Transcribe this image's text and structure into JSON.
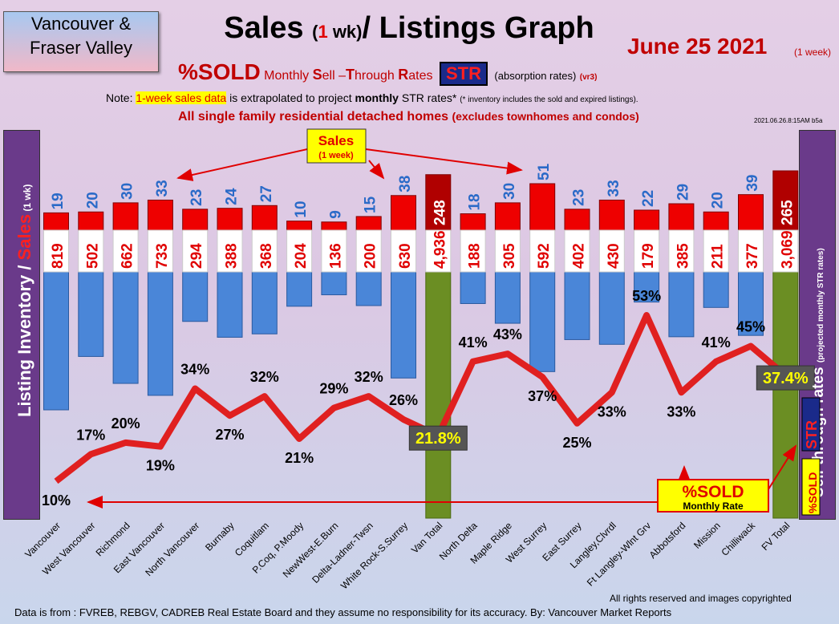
{
  "region": {
    "line1": "Vancouver &",
    "line2": "Fraser Valley"
  },
  "title": {
    "part1": "Sales ",
    "paren_open": "(",
    "one": "1",
    "paren_close": " wk)",
    "part2": "/ Listings Graph"
  },
  "date": {
    "main": "June 25  2021",
    "sub": "(1 week)"
  },
  "sold_line": {
    "pct_sold": "%SOLD",
    "monthly": "Monthly ",
    "s": "S",
    "ell": "ell –",
    "t": "T",
    "hrough": "hrough ",
    "r": "R",
    "ates": "ates",
    "str": "STR",
    "absorb": "(absorption rates)",
    "vr": "(vr3)"
  },
  "note": {
    "prefix": "Note: ",
    "highlight": "1-week sales data",
    "middle": " is extrapolated to project ",
    "bold": "monthly",
    "after": " STR rates* ",
    "small": "(* inventory includes the sold and expired listings)."
  },
  "subtitle": {
    "main": "All single family residential detached homes ",
    "small": "(excludes townhomes and condos)"
  },
  "stamp": "2021.06.26.8:15AM b5a",
  "footer": {
    "source": "Data is from : FVREB, REBGV, CADREB Real Estate Board and they assume no responsibility for its accuracy. By: Vancouver Market Reports",
    "copyright": "All rights reserved and  images copyrighted"
  },
  "colors": {
    "sales_bar": "#ee0000",
    "listings_bar": "#4a86d8",
    "total_bar": "#6b8e23",
    "str_line": "#e02020",
    "panel": "#6a3a8a"
  },
  "chart_data": {
    "type": "bar",
    "y_left_label": {
      "listing": "Listing Inventory / ",
      "sales": "Sales",
      "wk": " (1 wk)"
    },
    "y_right_label": {
      "main": "Sell-through rates ",
      "small": "(projected monthly STR rates)"
    },
    "right_str": "STR",
    "right_sold": "%SOLD",
    "sales_callout": {
      "title": "Sales",
      "sub": "(1 week)"
    },
    "sold_callout": {
      "title": "%SOLD",
      "sub": "Monthly Rate"
    },
    "categories": [
      "Vancouver",
      "West Vancouver",
      "Richmond",
      "East Vancouver",
      "North Vancouver",
      "Burnaby",
      "Coquitlam",
      "P.Coq, P.Moody",
      "NewWest-E.Burn",
      "Delta-Ladner-Twsn",
      "White Rock-S.Surrey",
      "Van Total",
      "North Delta",
      "Maple Ridge",
      "West Surrey",
      "East Surrey",
      "Langley,Clvrdl",
      "Ft Langley-Wlnt Grv",
      "Abbotsford",
      "Mission",
      "Chilliwack",
      "FV Total"
    ],
    "is_total": [
      false,
      false,
      false,
      false,
      false,
      false,
      false,
      false,
      false,
      false,
      false,
      true,
      false,
      false,
      false,
      false,
      false,
      false,
      false,
      false,
      false,
      true
    ],
    "sales": [
      19,
      20,
      30,
      33,
      23,
      24,
      27,
      10,
      9,
      15,
      38,
      248,
      18,
      30,
      51,
      23,
      33,
      22,
      29,
      20,
      39,
      265
    ],
    "sales_labels": [
      "19",
      "20",
      "30",
      "33",
      "23",
      "24",
      "27",
      "10",
      "9",
      "15",
      "38",
      "248",
      "18",
      "30",
      "51",
      "23",
      "33",
      "22",
      "29",
      "20",
      "39",
      "265"
    ],
    "listings": [
      819,
      502,
      662,
      733,
      294,
      388,
      368,
      204,
      136,
      200,
      630,
      4936,
      188,
      305,
      592,
      402,
      430,
      179,
      385,
      211,
      377,
      3069
    ],
    "listing_labels": [
      "819",
      "502",
      "662",
      "733",
      "294",
      "388",
      "368",
      "204",
      "136",
      "200",
      "630",
      "4,936",
      "188",
      "305",
      "592",
      "402",
      "430",
      "179",
      "385",
      "211",
      "377",
      "3,069"
    ],
    "str_pct": [
      10,
      17,
      20,
      19,
      34,
      27,
      32,
      21,
      29,
      32,
      26,
      21.8,
      41,
      43,
      37,
      25,
      33,
      53,
      33,
      41,
      45,
      37.4
    ],
    "str_labels": [
      "10%",
      "17%",
      "20%",
      "19%",
      "34%",
      "27%",
      "32%",
      "21%",
      "29%",
      "32%",
      "26%",
      "21.8%",
      "41%",
      "43%",
      "37%",
      "25%",
      "33%",
      "53%",
      "33%",
      "41%",
      "45%",
      "37.4%"
    ]
  }
}
